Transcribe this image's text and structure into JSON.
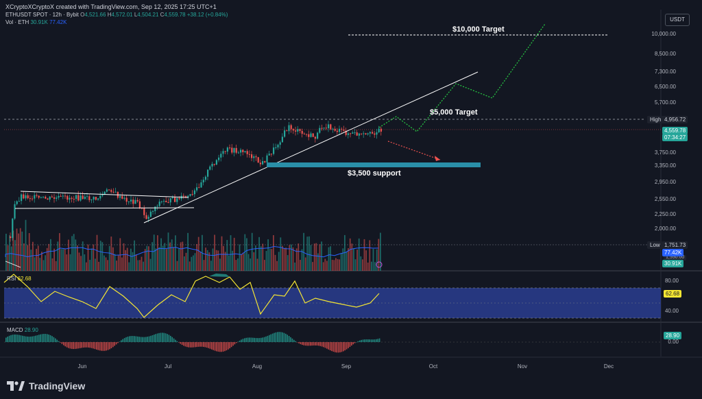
{
  "header": {
    "credit": "XCryptoXCryptoX created with TradingView.com, Sep 12, 2025 17:25 UTC+1"
  },
  "legend": {
    "symbol": "ETHUSDT SPOT · 12h · Bybit",
    "o_label": "O",
    "o": "4,521.66",
    "h_label": "H",
    "h": "4,572.01",
    "l_label": "L",
    "l": "4,504.21",
    "c_label": "C",
    "c": "4,559.78",
    "change": "+38.12 (+0.84%)",
    "vol_label": "Vol · ETH",
    "vol1": "30.91K",
    "vol2": "77.42K"
  },
  "quote_currency": "USDT",
  "price_axis": [
    "10,000.00",
    "8,500.00",
    "7,300.00",
    "6,500.00",
    "5,700.00",
    "4,956.72",
    "4,559.78",
    "3,750.00",
    "3,350.00",
    "2,950.00",
    "2,550.00",
    "2,250.00",
    "2,000.00",
    "1,751.73"
  ],
  "price_labels": [
    {
      "key": "p10000",
      "text": "10,000.00",
      "y": 50
    },
    {
      "key": "p8500",
      "text": "8,500.00",
      "y": 79
    },
    {
      "key": "p7300",
      "text": "7,300.00",
      "y": 105
    },
    {
      "key": "p6500",
      "text": "6,500.00",
      "y": 127
    },
    {
      "key": "p5700",
      "text": "5,700.00",
      "y": 150
    },
    {
      "key": "p3750",
      "text": "3,750.00",
      "y": 223
    },
    {
      "key": "p3350",
      "text": "3,350.00",
      "y": 242
    },
    {
      "key": "p2950",
      "text": "2,950.00",
      "y": 266
    },
    {
      "key": "p2550",
      "text": "2,550.00",
      "y": 291
    },
    {
      "key": "p2250",
      "text": "2,250.00",
      "y": 313
    },
    {
      "key": "p2000",
      "text": "2,000.00",
      "y": 334
    }
  ],
  "tags": {
    "high_label": "High",
    "high_value": "4,956.72",
    "last_price": "4,559.78",
    "countdown": "07:34:27",
    "low_label": "Low",
    "low_value": "1,751.73",
    "vol_a": "77.42K",
    "vol_b": "30.91K",
    "hidden_tick": "1,550.00"
  },
  "annotations": {
    "target_10000": "$10,000 Target",
    "target_5000": "$5,000 Target",
    "support_3500": "$3,500 support"
  },
  "rsi": {
    "label": "RSI",
    "value": "62.68",
    "axis_top": "80.00",
    "axis_bottom": "40.00"
  },
  "macd": {
    "label": "MACD",
    "value": "28.90",
    "axis_zero": "0.00"
  },
  "time_axis": [
    "Jun",
    "Jul",
    "Aug",
    "Sep",
    "Oct",
    "Nov",
    "Dec"
  ],
  "brand": "TradingView",
  "colors": {
    "up": "#26a69a",
    "down": "#ef5350",
    "rsi_band": "#2a3d8f",
    "rsi_line": "#f5e633",
    "support": "#2a8fa8",
    "target_path": "#26c442",
    "down_path": "#ef5350",
    "bg": "#131722"
  }
}
